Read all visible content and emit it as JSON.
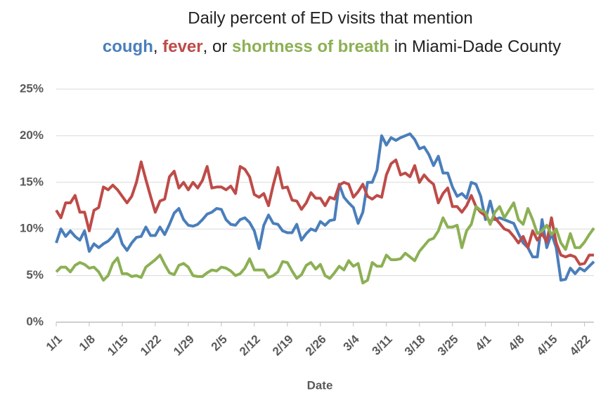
{
  "chart_data": {
    "type": "line",
    "title": "Daily percent of ED visits that mention",
    "title_connectors": [
      ",",
      ", or",
      "in Miami-Dade County"
    ],
    "x_label": "Date",
    "categories": [
      "1/1",
      null,
      null,
      null,
      null,
      null,
      null,
      "1/8",
      null,
      null,
      null,
      null,
      null,
      null,
      "1/15",
      null,
      null,
      null,
      null,
      null,
      null,
      "1/22",
      null,
      null,
      null,
      null,
      null,
      null,
      "1/29",
      null,
      null,
      null,
      null,
      null,
      null,
      "2/5",
      null,
      null,
      null,
      null,
      null,
      null,
      "2/12",
      null,
      null,
      null,
      null,
      null,
      null,
      "2/19",
      null,
      null,
      null,
      null,
      null,
      null,
      "2/26",
      null,
      null,
      null,
      null,
      null,
      null,
      "3/4",
      null,
      null,
      null,
      null,
      null,
      null,
      "3/11",
      null,
      null,
      null,
      null,
      null,
      null,
      "3/18",
      null,
      null,
      null,
      null,
      null,
      null,
      "3/25",
      null,
      null,
      null,
      null,
      null,
      null,
      "4/1",
      null,
      null,
      null,
      null,
      null,
      null,
      "4/8",
      null,
      null,
      null,
      null,
      null,
      null,
      "4/15",
      null,
      null,
      null,
      null,
      null,
      null,
      "4/22",
      null,
      null
    ],
    "series": [
      {
        "name": "cough",
        "color": "#4a7ebb",
        "values": [
          8.5,
          10,
          9.2,
          9.8,
          9.2,
          8.8,
          9.8,
          7.6,
          8.4,
          8,
          8.4,
          8.7,
          9.2,
          10,
          8.4,
          7.7,
          8.5,
          9.1,
          9.2,
          10.2,
          9.3,
          9.3,
          10.2,
          9.4,
          10.5,
          11.7,
          12.2,
          11,
          10.4,
          10.3,
          10.5,
          11,
          11.6,
          11.8,
          12.2,
          12.1,
          11,
          10.5,
          10.4,
          11,
          11.2,
          10.7,
          9.8,
          7.9,
          10.4,
          11.5,
          10.6,
          10.5,
          9.8,
          9.6,
          9.6,
          10.5,
          8.8,
          9.5,
          10,
          9.8,
          10.8,
          10.4,
          10.9,
          11,
          14.8,
          13.4,
          12.8,
          12.3,
          10.6,
          11.8,
          15,
          15,
          16.3,
          20,
          19,
          19.8,
          19.5,
          19.8,
          20,
          20.2,
          19.6,
          18.6,
          18.8,
          18,
          16.8,
          17.8,
          16,
          16,
          14.5,
          13.5,
          13.8,
          13.3,
          15,
          14.8,
          13.5,
          11,
          13,
          11,
          11.2,
          11,
          10.8,
          10.6,
          9.5,
          8.5,
          8,
          7,
          7,
          11,
          8,
          9.5,
          8,
          4.5,
          4.6,
          5.8,
          5.2,
          5.8,
          5.5,
          6,
          6.5
        ]
      },
      {
        "name": "fever",
        "color": "#be4b48",
        "values": [
          12,
          11.2,
          12.8,
          12.8,
          13.6,
          11.8,
          11.8,
          9.8,
          12,
          12.3,
          14.5,
          14.2,
          14.7,
          14.2,
          13.5,
          12.8,
          13.5,
          15,
          17.2,
          15.3,
          13.5,
          11.8,
          13,
          13.2,
          15.6,
          16.2,
          14.4,
          15,
          14.2,
          15,
          14.4,
          15.2,
          16.7,
          14.4,
          14.5,
          14.5,
          14.2,
          14.6,
          13.8,
          16.7,
          16.4,
          15.6,
          13.7,
          13.4,
          13.8,
          12.5,
          14.7,
          16.6,
          14.4,
          14.5,
          13.1,
          13,
          12.1,
          12.8,
          13.9,
          13.3,
          13.3,
          12.5,
          13.4,
          13.2,
          14.7,
          15,
          14.8,
          13.4,
          14,
          14.8,
          13.5,
          13.2,
          13.6,
          13.4,
          15.8,
          17,
          17.4,
          15.8,
          16,
          15.6,
          16.8,
          15,
          15.8,
          15.2,
          14.8,
          12.8,
          13.8,
          14.4,
          12.4,
          12.4,
          11.8,
          12.5,
          13.6,
          12.4,
          11.8,
          11.4,
          10.8,
          11.2,
          10.6,
          10,
          9.8,
          9.2,
          8.5,
          9.2,
          8,
          9.8,
          8.8,
          9.5,
          8.6,
          11.2,
          8.5,
          7.2,
          7,
          7.2,
          7,
          6.2,
          6.3,
          7.2,
          7.2
        ]
      },
      {
        "name": "shortness of breath",
        "color": "#8cb054",
        "values": [
          5.4,
          5.9,
          5.9,
          5.4,
          6.1,
          6.4,
          6.2,
          5.8,
          5.9,
          5.4,
          4.5,
          5,
          6.3,
          6.9,
          5.2,
          5.2,
          4.9,
          5,
          4.8,
          5.9,
          6.3,
          6.7,
          7.2,
          6.2,
          5.3,
          5.1,
          6.1,
          6.3,
          5.9,
          5,
          4.9,
          4.9,
          5.3,
          5.6,
          5.5,
          5.9,
          5.8,
          5.5,
          5,
          5.2,
          5.8,
          6.8,
          5.6,
          5.6,
          5.6,
          4.8,
          5,
          5.4,
          6.5,
          6.4,
          5.5,
          4.7,
          5.1,
          6.1,
          6.4,
          5.7,
          6.2,
          5,
          4.7,
          5.3,
          6,
          5.6,
          6.6,
          6,
          6.3,
          4.2,
          4.5,
          6.4,
          6,
          6,
          7.2,
          6.7,
          6.7,
          6.8,
          7.4,
          7,
          6.6,
          7.6,
          8.2,
          8.8,
          9,
          9.8,
          11.2,
          10.2,
          10.2,
          10.4,
          8,
          9.8,
          10.5,
          12.4,
          12,
          11.8,
          10.5,
          11.8,
          12.4,
          11.2,
          12,
          12.8,
          11,
          10.5,
          12.2,
          11,
          9.5,
          9.8,
          10.4,
          9.4,
          10,
          8.5,
          7.8,
          9.5,
          8,
          8,
          8.6,
          9.4,
          10.1
        ]
      }
    ],
    "ylim": [
      0,
      25
    ],
    "yticks": [
      {
        "value": 0,
        "label": "0%"
      },
      {
        "value": 5,
        "label": "5%"
      },
      {
        "value": 10,
        "label": "10%"
      },
      {
        "value": 15,
        "label": "15%"
      },
      {
        "value": 20,
        "label": "20%"
      },
      {
        "value": 25,
        "label": "25%"
      }
    ],
    "grid": true
  }
}
